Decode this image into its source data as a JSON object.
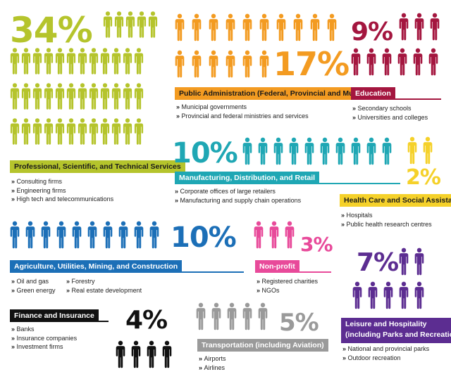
{
  "sectors": {
    "professional": {
      "percent": "34%",
      "title": "Professional, Scientific, and Technical Services",
      "color": "#b5c42c",
      "items": [
        "Consulting firms",
        "Engineering firms",
        "High tech and telecommunications"
      ]
    },
    "public_admin": {
      "percent": "17%",
      "title": "Public Administration (Federal, Provincial and Municipal)",
      "color": "#f39b21",
      "items": [
        "Municipal governments",
        "Provincial and federal ministries and services"
      ]
    },
    "education": {
      "percent": "9%",
      "title": "Education",
      "color": "#a4163f",
      "items": [
        "Secondary schools",
        "Universities and colleges"
      ]
    },
    "manufacturing": {
      "percent": "10%",
      "title": "Manufacturing, Distribution, and Retail",
      "color": "#1fa7b4",
      "items": [
        "Corporate offices of large retailers",
        "Manufacturing and supply chain operations"
      ]
    },
    "health": {
      "percent": "2%",
      "title": "Health Care and Social Assistance",
      "color": "#f5d12a",
      "items": [
        "Hospitals",
        "Public health research centres"
      ]
    },
    "agriculture": {
      "percent": "10%",
      "title": "Agriculture, Utilities, Mining, and Construction",
      "color": "#1c6fb7",
      "items_col1": [
        "Oil and gas",
        "Green energy"
      ],
      "items_col2": [
        "Forestry",
        "Real estate development"
      ]
    },
    "nonprofit": {
      "percent": "3%",
      "title": "Non-profit",
      "color": "#e84a9a",
      "items": [
        "Registered charities",
        "NGOs"
      ]
    },
    "leisure": {
      "percent": "7%",
      "title_line1": "Leisure and Hospitality",
      "title_line2": "(including Parks and Recreation)",
      "color": "#5c2d91",
      "items": [
        "National and provincial parks",
        "Outdoor recreation"
      ]
    },
    "finance": {
      "percent": "4%",
      "title": "Finance and Insurance",
      "color": "#111111",
      "items": [
        "Banks",
        "Insurance companies",
        "Investment firms"
      ]
    },
    "transportation": {
      "percent": "5%",
      "title": "Transportation (including Aviation)",
      "color": "#9a9a9a",
      "items": [
        "Airports",
        "Airlines"
      ]
    }
  }
}
